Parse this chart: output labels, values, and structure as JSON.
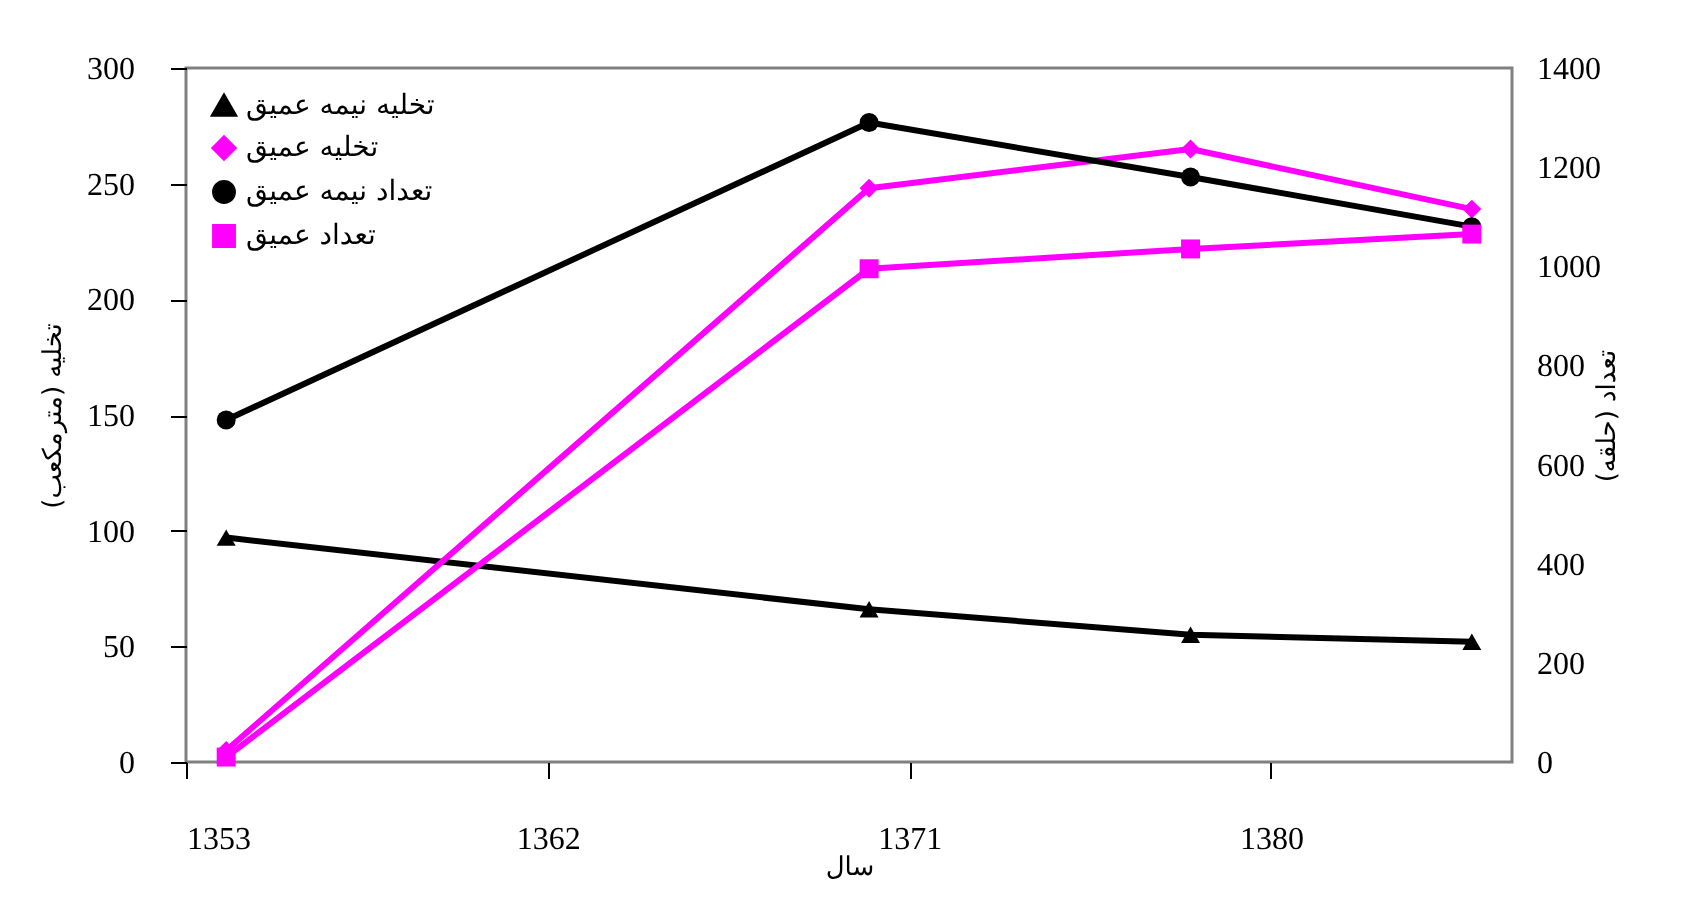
{
  "chart_data": {
    "type": "line",
    "xlabel": "سال",
    "ylabel": "تخلیه (مترمکعب)",
    "y2label": "تعداد (حلقه)",
    "x": [
      1354,
      1370,
      1378,
      1385
    ],
    "xlim": [
      1353,
      1386
    ],
    "xticks": [
      1353,
      1362,
      1371,
      1380
    ],
    "ylim": [
      0,
      300
    ],
    "yticks": [
      0,
      50,
      100,
      150,
      200,
      250,
      300
    ],
    "y2lim": [
      0,
      1400
    ],
    "y2ticks": [
      0,
      200,
      400,
      600,
      800,
      1000,
      1200,
      1400
    ],
    "legend": "top left",
    "grid": false,
    "series": [
      {
        "name": "تخلیه نیمه عمیق",
        "color": "#000000",
        "marker": "triangle",
        "values": [
          97,
          66,
          55,
          52
        ]
      },
      {
        "name": "تخلیه عمیق",
        "color": "#ff00ff",
        "marker": "diamond",
        "values": [
          5,
          248,
          265,
          239
        ]
      },
      {
        "name": "تعداد نیمه عمیق",
        "color": "#000000",
        "marker": "circle",
        "axis": "y2",
        "values": [
          690,
          1290,
          1180,
          1080
        ]
      },
      {
        "name": "تعداد عمیق",
        "color": "#ff00ff",
        "marker": "square",
        "axis": "y2",
        "values": [
          10,
          995,
          1035,
          1065
        ]
      }
    ]
  }
}
